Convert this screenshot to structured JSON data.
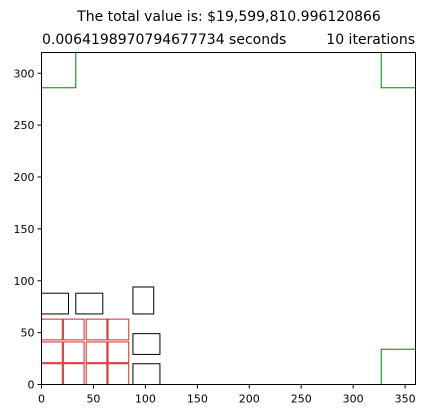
{
  "chart_data": {
    "type": "rectangle-packing",
    "title": "The total value is: $19,599,810.996120866",
    "subtitle_left": "0.0064198970794677734 seconds",
    "subtitle_right": "10 iterations",
    "xlabel": "",
    "ylabel": "",
    "xlim": [
      0,
      360
    ],
    "ylim": [
      0,
      320
    ],
    "grid": false,
    "xticks": [
      0,
      50,
      100,
      150,
      200,
      250,
      300,
      350
    ],
    "yticks": [
      0,
      50,
      100,
      150,
      200,
      250,
      300
    ],
    "colors": {
      "black": "#000000",
      "red": "#d62728",
      "green": "#008000"
    },
    "rectangles": [
      {
        "x": 0,
        "y": 286,
        "w": 33,
        "h": 34,
        "color": "green"
      },
      {
        "x": 327,
        "y": 286,
        "w": 33,
        "h": 34,
        "color": "green"
      },
      {
        "x": 327,
        "y": 0,
        "w": 33,
        "h": 34,
        "color": "green"
      },
      {
        "x": 0,
        "y": 68,
        "w": 26,
        "h": 20,
        "color": "black"
      },
      {
        "x": 33,
        "y": 68,
        "w": 26,
        "h": 20,
        "color": "black"
      },
      {
        "x": 88,
        "y": 68,
        "w": 20,
        "h": 26,
        "color": "black"
      },
      {
        "x": 88,
        "y": 29,
        "w": 26,
        "h": 20,
        "color": "black"
      },
      {
        "x": 88,
        "y": 0,
        "w": 26,
        "h": 20,
        "color": "black"
      },
      {
        "x": 0,
        "y": 0,
        "w": 20,
        "h": 20,
        "color": "red"
      },
      {
        "x": 21,
        "y": 0,
        "w": 20,
        "h": 20,
        "color": "red"
      },
      {
        "x": 43,
        "y": 0,
        "w": 20,
        "h": 20,
        "color": "red"
      },
      {
        "x": 64,
        "y": 0,
        "w": 20,
        "h": 20,
        "color": "red"
      },
      {
        "x": 0,
        "y": 21,
        "w": 20,
        "h": 20,
        "color": "red"
      },
      {
        "x": 21,
        "y": 21,
        "w": 20,
        "h": 20,
        "color": "red"
      },
      {
        "x": 43,
        "y": 21,
        "w": 20,
        "h": 20,
        "color": "red"
      },
      {
        "x": 64,
        "y": 21,
        "w": 20,
        "h": 20,
        "color": "red"
      },
      {
        "x": 0,
        "y": 43,
        "w": 20,
        "h": 20,
        "color": "red"
      },
      {
        "x": 21,
        "y": 43,
        "w": 20,
        "h": 20,
        "color": "red"
      },
      {
        "x": 43,
        "y": 43,
        "w": 20,
        "h": 20,
        "color": "red"
      },
      {
        "x": 64,
        "y": 43,
        "w": 20,
        "h": 20,
        "color": "red"
      }
    ]
  }
}
